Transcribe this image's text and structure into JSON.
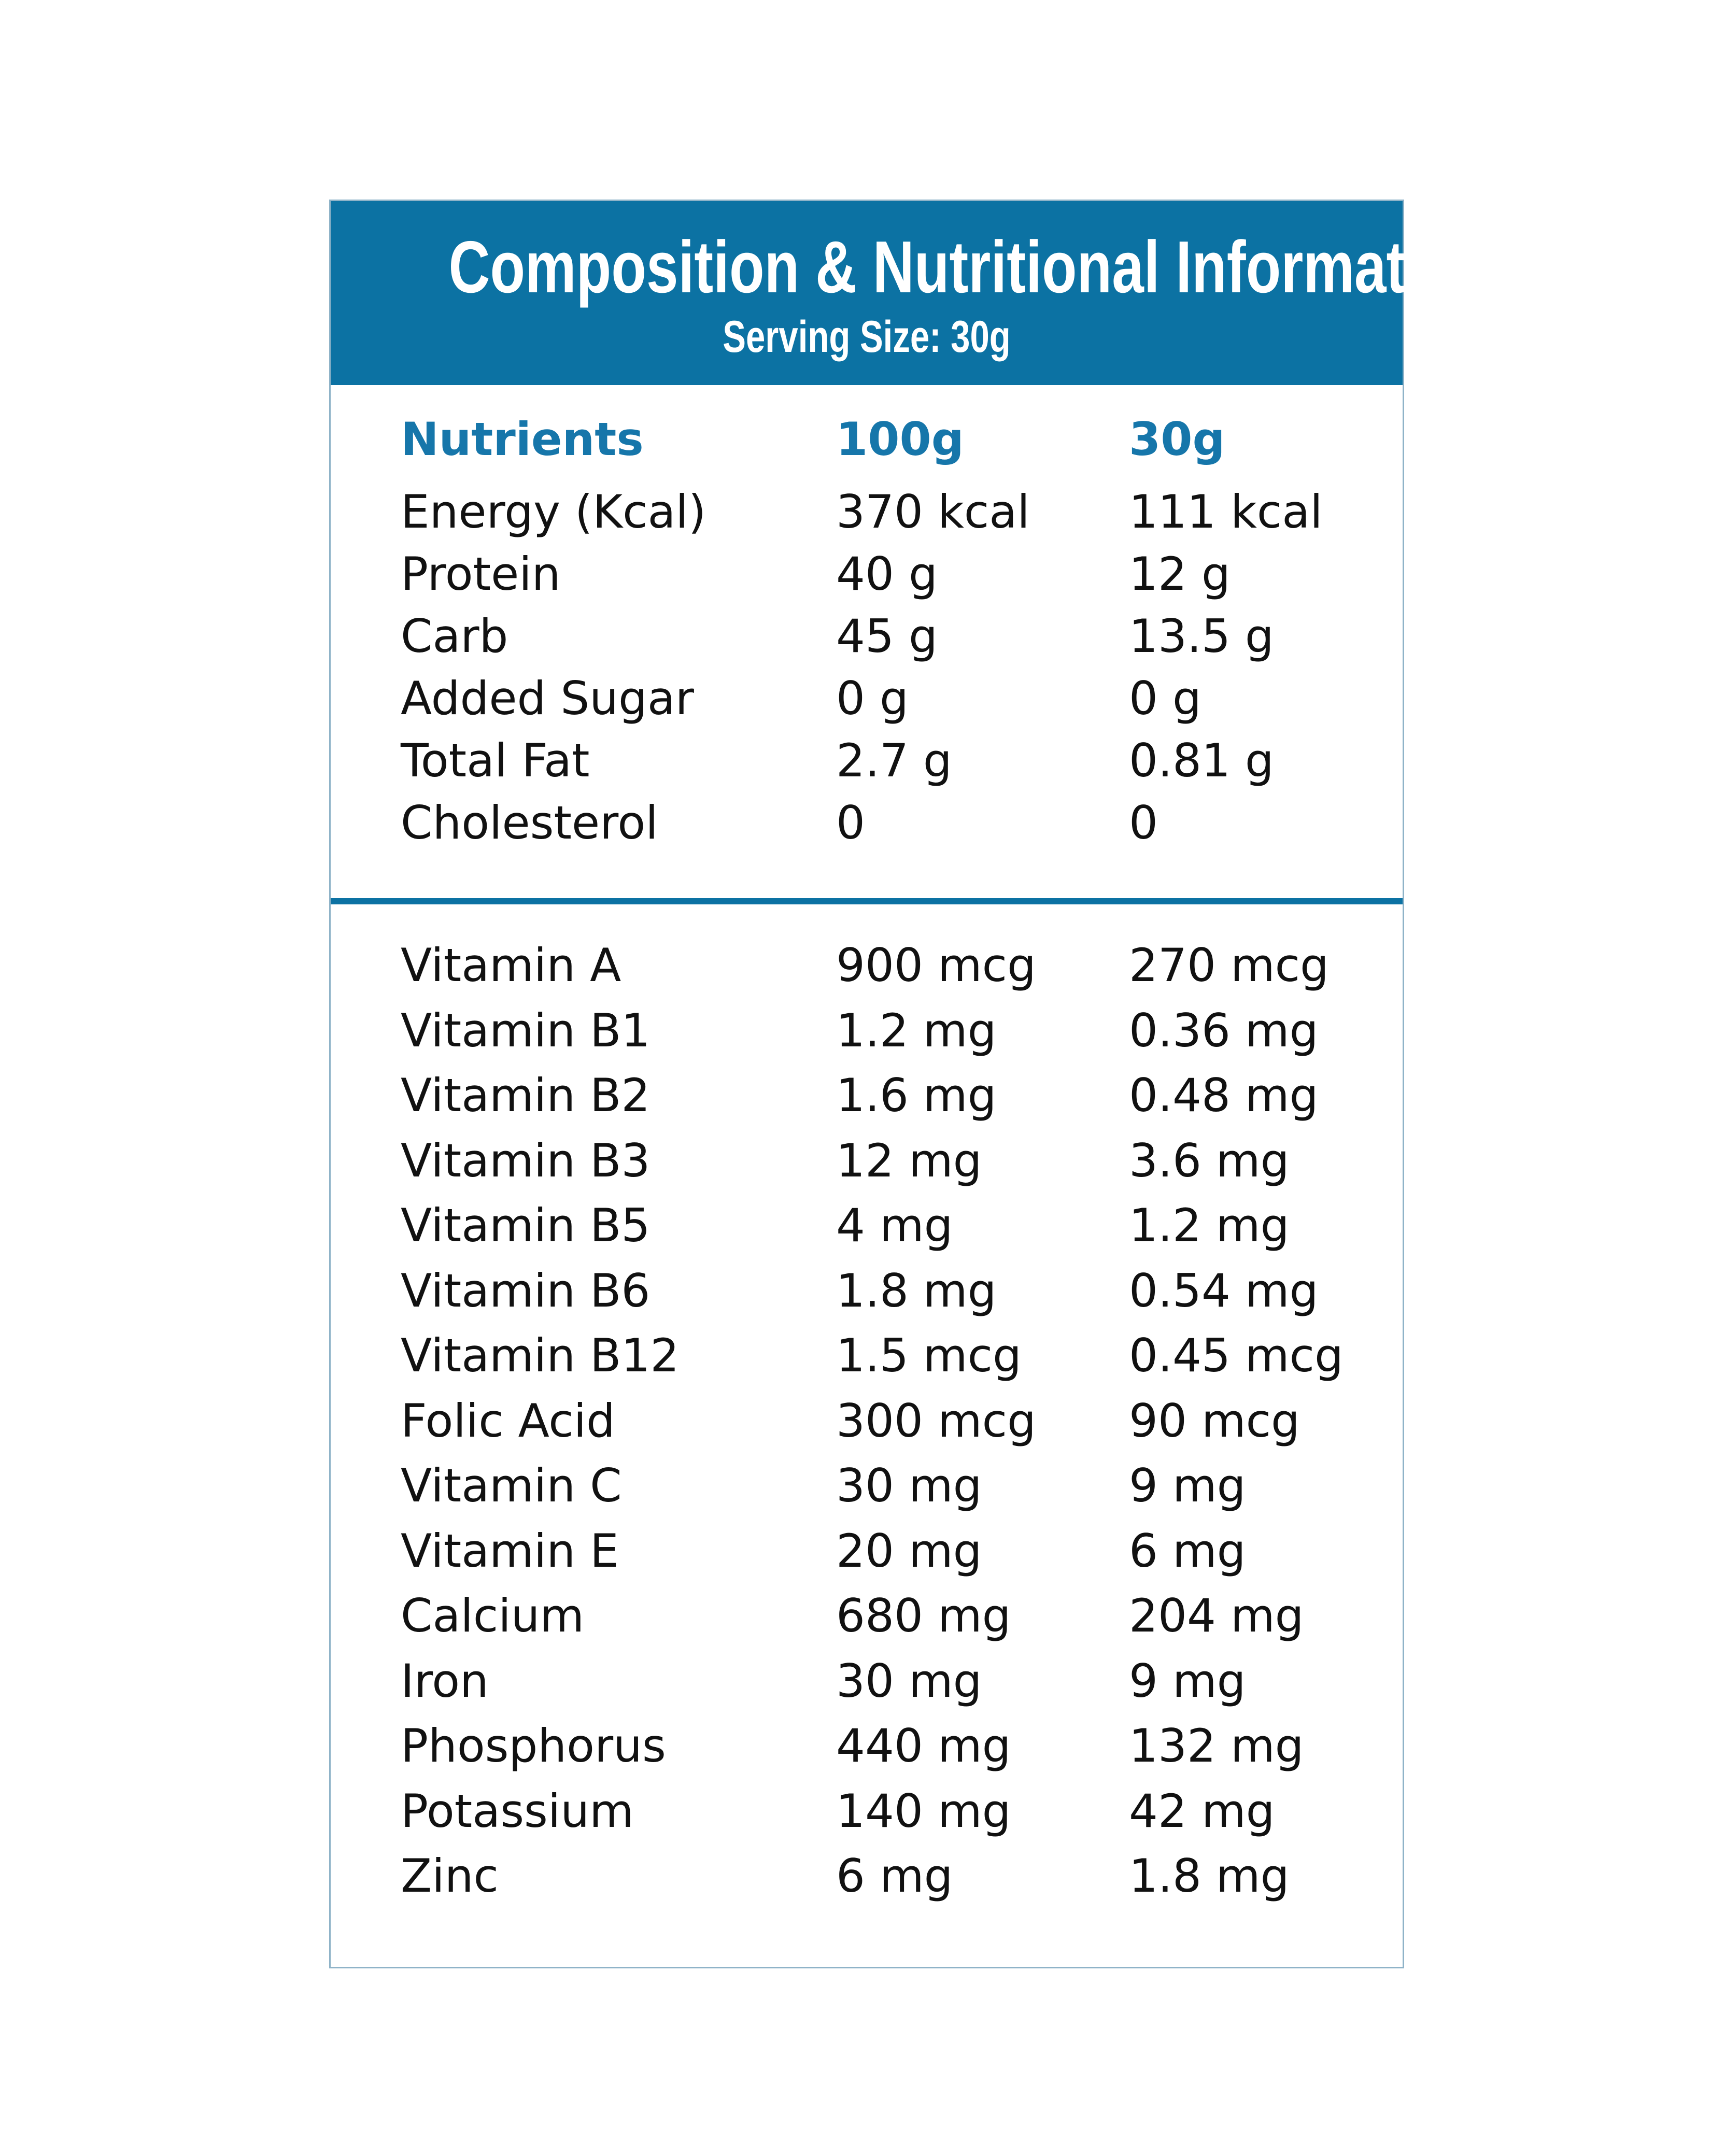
{
  "header": {
    "title": "Composition & Nutritional Information",
    "subtitle": "Serving Size: 30g"
  },
  "columns": [
    "Nutrients",
    "100g",
    "30g"
  ],
  "macros": [
    {
      "name": "Energy (Kcal)",
      "per100": "370 kcal",
      "per30": "111 kcal"
    },
    {
      "name": "Protein",
      "per100": "40 g",
      "per30": "12 g"
    },
    {
      "name": "Carb",
      "per100": "45 g",
      "per30": "13.5 g"
    },
    {
      "name": "Added Sugar",
      "per100": "0 g",
      "per30": "0 g"
    },
    {
      "name": "Total Fat",
      "per100": "2.7 g",
      "per30": "0.81 g"
    },
    {
      "name": "Cholesterol",
      "per100": "0",
      "per30": "0"
    }
  ],
  "micros": [
    {
      "name": "Vitamin A",
      "per100": "900 mcg",
      "per30": "270 mcg"
    },
    {
      "name": "Vitamin B1",
      "per100": "1.2 mg",
      "per30": "0.36 mg"
    },
    {
      "name": "Vitamin B2",
      "per100": "1.6 mg",
      "per30": "0.48 mg"
    },
    {
      "name": "Vitamin B3",
      "per100": "12 mg",
      "per30": "3.6 mg"
    },
    {
      "name": "Vitamin B5",
      "per100": "4 mg",
      "per30": "1.2 mg"
    },
    {
      "name": "Vitamin B6",
      "per100": "1.8 mg",
      "per30": "0.54 mg"
    },
    {
      "name": "Vitamin B12",
      "per100": "1.5 mcg",
      "per30": "0.45 mcg"
    },
    {
      "name": "Folic Acid",
      "per100": "300 mcg",
      "per30": "90 mcg"
    },
    {
      "name": "Vitamin C",
      "per100": "30 mg",
      "per30": "9 mg"
    },
    {
      "name": "Vitamin E",
      "per100": "20 mg",
      "per30": "6 mg"
    },
    {
      "name": "Calcium",
      "per100": "680 mg",
      "per30": "204 mg"
    },
    {
      "name": "Iron",
      "per100": "30 mg",
      "per30": "9 mg"
    },
    {
      "name": "Phosphorus",
      "per100": "440 mg",
      "per30": "132 mg"
    },
    {
      "name": "Potassium",
      "per100": "140 mg",
      "per30": "42 mg"
    },
    {
      "name": "Zinc",
      "per100": "6 mg",
      "per30": "1.8 mg"
    }
  ],
  "colors": {
    "header_bg": "#0c72a3",
    "column_header_text": "#1676aa",
    "border": "#8fb3c8"
  }
}
